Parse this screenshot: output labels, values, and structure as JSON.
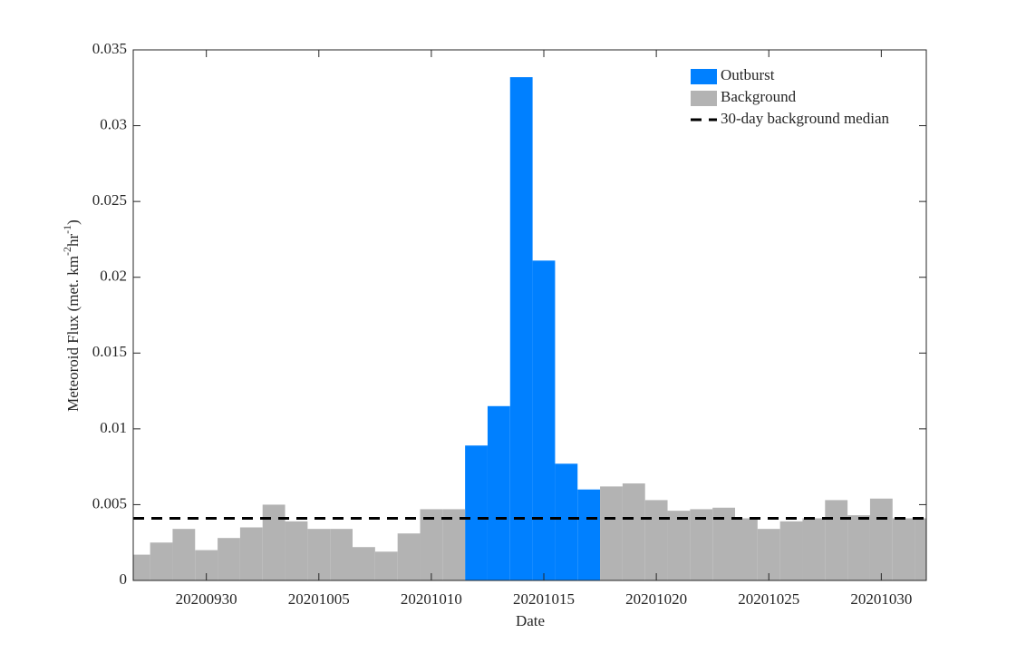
{
  "chart_data": {
    "type": "bar",
    "xlabel": "Date",
    "ylabel": [
      "Meteoroid Flux (met. km",
      "-2",
      "hr",
      "-1",
      ")"
    ],
    "x": [
      "20200927",
      "20200928",
      "20200929",
      "20200930",
      "20201001",
      "20201002",
      "20201003",
      "20201004",
      "20201005",
      "20201006",
      "20201007",
      "20201008",
      "20201009",
      "20201010",
      "20201011",
      "20201012",
      "20201013",
      "20201014",
      "20201015",
      "20201016",
      "20201017",
      "20201018",
      "20201019",
      "20201020",
      "20201021",
      "20201022",
      "20201023",
      "20201024",
      "20201025",
      "20201026",
      "20201027",
      "20201028",
      "20201029",
      "20201030",
      "20201031",
      "20201101"
    ],
    "series": [
      {
        "name": "Outburst",
        "color": "#0080ff",
        "values": [
          null,
          null,
          null,
          null,
          null,
          null,
          null,
          null,
          null,
          null,
          null,
          null,
          null,
          null,
          null,
          0.0089,
          0.0115,
          0.0332,
          0.0211,
          0.0077,
          0.006,
          null,
          null,
          null,
          null,
          null,
          null,
          null,
          null,
          null,
          null,
          null,
          null,
          null,
          null,
          null
        ]
      },
      {
        "name": "Background",
        "color": "#b3b3b3",
        "values": [
          0.0017,
          0.0025,
          0.0034,
          0.002,
          0.0028,
          0.0035,
          0.005,
          0.0039,
          0.0034,
          0.0034,
          0.0022,
          0.0019,
          0.0031,
          0.0047,
          0.0047,
          null,
          null,
          null,
          null,
          null,
          null,
          0.0062,
          0.0064,
          0.0053,
          0.0046,
          0.0047,
          0.0048,
          0.0041,
          0.0034,
          0.0039,
          0.0041,
          0.0053,
          0.0043,
          0.0054,
          0.0041,
          0.0041
        ]
      }
    ],
    "median": {
      "name": "30-day background median",
      "value": 0.0041,
      "color": "#000000"
    },
    "xlim": [
      "2020-09-26T18:00",
      "2020-11-01T00:00"
    ],
    "xticks": [
      "20200930",
      "20201005",
      "20201010",
      "20201015",
      "20201020",
      "20201025",
      "20201030"
    ],
    "ylim": [
      0,
      0.035
    ],
    "yticks": [
      0,
      0.005,
      0.01,
      0.015,
      0.02,
      0.025,
      0.03,
      0.035
    ],
    "legend": "top-right"
  }
}
